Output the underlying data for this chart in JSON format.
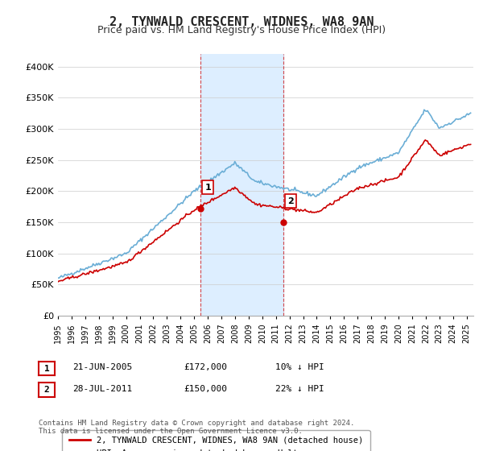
{
  "title": "2, TYNWALD CRESCENT, WIDNES, WA8 9AN",
  "subtitle": "Price paid vs. HM Land Registry's House Price Index (HPI)",
  "ylabel_ticks": [
    "£0",
    "£50K",
    "£100K",
    "£150K",
    "£200K",
    "£250K",
    "£300K",
    "£350K",
    "£400K"
  ],
  "ytick_values": [
    0,
    50000,
    100000,
    150000,
    200000,
    250000,
    300000,
    350000,
    400000
  ],
  "ylim": [
    0,
    420000
  ],
  "xlim_start": 1995.0,
  "xlim_end": 2025.5,
  "hpi_color": "#6baed6",
  "price_color": "#cc0000",
  "highlight_bg": "#ddeeff",
  "marker1_year": 2005.47,
  "marker1_price": 172000,
  "marker2_year": 2011.57,
  "marker2_price": 150000,
  "legend_label_red": "2, TYNWALD CRESCENT, WIDNES, WA8 9AN (detached house)",
  "legend_label_blue": "HPI: Average price, detached house, Halton",
  "table_row1": [
    "1",
    "21-JUN-2005",
    "£172,000",
    "10% ↓ HPI"
  ],
  "table_row2": [
    "2",
    "28-JUL-2011",
    "£150,000",
    "22% ↓ HPI"
  ],
  "footnote": "Contains HM Land Registry data © Crown copyright and database right 2024.\nThis data is licensed under the Open Government Licence v3.0.",
  "title_fontsize": 11,
  "subtitle_fontsize": 9,
  "tick_fontsize": 8,
  "axis_label_color": "#333333",
  "background_color": "#ffffff",
  "plot_bg_color": "#ffffff"
}
